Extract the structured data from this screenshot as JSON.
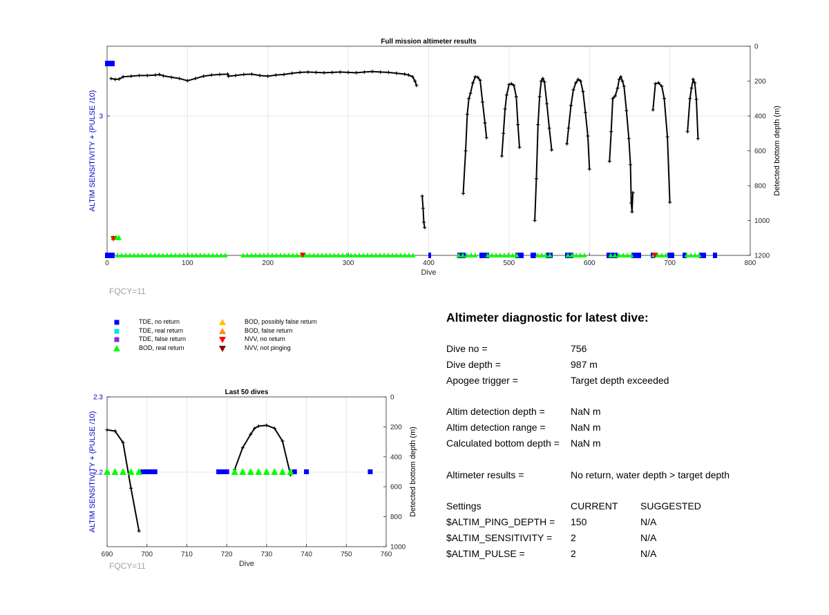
{
  "chart_data": [
    {
      "type": "scatter",
      "title": "Full mission altimeter results",
      "xlabel": "Dive",
      "ylabel_left": "ALTIM SENSITIVITY + (PULSE /10)",
      "ylabel_right": "Detected bottom depth (m)",
      "xlim": [
        0,
        800
      ],
      "x_ticks": [
        "0",
        "100",
        "200",
        "300",
        "400",
        "500",
        "600",
        "700",
        "800"
      ],
      "x_tick_values": [
        0,
        100,
        200,
        300,
        400,
        500,
        600,
        700,
        800
      ],
      "left_y_ticks": [
        "3"
      ],
      "right_ylim": [
        0,
        1200
      ],
      "right_y_ticks": [
        "0",
        "200",
        "400",
        "600",
        "800",
        "1000",
        "1200"
      ],
      "right_y_tick_values": [
        0,
        200,
        400,
        600,
        800,
        1000,
        1200
      ],
      "grid": true,
      "depth_segments": [
        [
          [
            5,
            185
          ],
          [
            10,
            190
          ],
          [
            15,
            188
          ],
          [
            20,
            175
          ],
          [
            30,
            172
          ],
          [
            40,
            168
          ],
          [
            50,
            168
          ],
          [
            60,
            165
          ],
          [
            65,
            162
          ],
          [
            70,
            170
          ],
          [
            80,
            178
          ],
          [
            90,
            185
          ],
          [
            100,
            198
          ],
          [
            110,
            185
          ],
          [
            120,
            172
          ],
          [
            130,
            165
          ],
          [
            140,
            162
          ],
          [
            150,
            160
          ],
          [
            151,
            172
          ],
          [
            160,
            168
          ],
          [
            170,
            162
          ],
          [
            180,
            160
          ],
          [
            190,
            168
          ],
          [
            200,
            172
          ],
          [
            210,
            165
          ],
          [
            220,
            162
          ],
          [
            230,
            155
          ],
          [
            240,
            150
          ],
          [
            250,
            148
          ],
          [
            260,
            150
          ],
          [
            270,
            152
          ],
          [
            280,
            150
          ],
          [
            290,
            148
          ],
          [
            300,
            150
          ],
          [
            310,
            152
          ],
          [
            320,
            148
          ],
          [
            330,
            145
          ],
          [
            340,
            148
          ],
          [
            350,
            150
          ],
          [
            360,
            155
          ],
          [
            370,
            160
          ],
          [
            375,
            165
          ],
          [
            380,
            175
          ],
          [
            383,
            200
          ],
          [
            385,
            225
          ]
        ],
        [
          [
            392,
            860
          ],
          [
            393,
            930
          ],
          [
            394,
            1010
          ],
          [
            395,
            1040
          ]
        ],
        [
          [
            443,
            845
          ],
          [
            446,
            600
          ],
          [
            448,
            390
          ],
          [
            450,
            300
          ],
          [
            452,
            270
          ],
          [
            455,
            210
          ],
          [
            458,
            175
          ],
          [
            461,
            178
          ],
          [
            464,
            195
          ],
          [
            467,
            320
          ],
          [
            470,
            440
          ],
          [
            472,
            525
          ]
        ],
        [
          [
            491,
            630
          ],
          [
            493,
            500
          ],
          [
            495,
            360
          ],
          [
            497,
            280
          ],
          [
            500,
            220
          ],
          [
            503,
            215
          ],
          [
            506,
            225
          ],
          [
            509,
            290
          ],
          [
            511,
            450
          ],
          [
            513,
            580
          ]
        ],
        [
          [
            532,
            1000
          ],
          [
            534,
            760
          ],
          [
            536,
            450
          ],
          [
            538,
            290
          ],
          [
            540,
            200
          ],
          [
            542,
            185
          ],
          [
            544,
            205
          ],
          [
            547,
            330
          ],
          [
            550,
            470
          ],
          [
            553,
            595
          ]
        ],
        [
          [
            572,
            560
          ],
          [
            574,
            470
          ],
          [
            577,
            340
          ],
          [
            580,
            250
          ],
          [
            583,
            210
          ],
          [
            586,
            190
          ],
          [
            589,
            200
          ],
          [
            592,
            260
          ],
          [
            595,
            380
          ],
          [
            598,
            515
          ],
          [
            600,
            705
          ]
        ],
        [
          [
            625,
            660
          ],
          [
            627,
            490
          ],
          [
            629,
            300
          ],
          [
            632,
            285
          ],
          [
            635,
            240
          ],
          [
            637,
            190
          ],
          [
            639,
            175
          ],
          [
            641,
            200
          ],
          [
            643,
            230
          ],
          [
            646,
            370
          ],
          [
            649,
            530
          ],
          [
            651,
            680
          ],
          [
            652,
            900
          ],
          [
            653,
            950
          ],
          [
            654,
            840
          ]
        ],
        [
          [
            679,
            365
          ],
          [
            682,
            215
          ],
          [
            686,
            210
          ],
          [
            690,
            230
          ],
          [
            693,
            300
          ],
          [
            697,
            520
          ],
          [
            700,
            895
          ]
        ],
        [
          [
            722,
            490
          ],
          [
            725,
            300
          ],
          [
            727,
            240
          ],
          [
            729,
            190
          ],
          [
            731,
            210
          ],
          [
            733,
            305
          ],
          [
            735,
            530
          ]
        ]
      ],
      "extra_labels": [
        "FQCY=11"
      ]
    },
    {
      "type": "scatter",
      "title": "Last 50 dives",
      "xlabel": "Dive",
      "ylabel_left": "ALTIM SENSITIVITY + (PULSE /10)",
      "ylabel_right": "Detected bottom depth (m)",
      "xlim": [
        690,
        760
      ],
      "x_ticks": [
        "690",
        "700",
        "710",
        "720",
        "730",
        "740",
        "750",
        "760"
      ],
      "x_tick_values": [
        690,
        700,
        710,
        720,
        730,
        740,
        750,
        760
      ],
      "ylim_left": [
        2.1,
        2.3
      ],
      "left_y_ticks": [
        "2.3",
        "2.2"
      ],
      "left_y_tick_values": [
        2.3,
        2.2
      ],
      "right_ylim": [
        0,
        1000
      ],
      "right_y_ticks": [
        "0",
        "200",
        "400",
        "600",
        "800",
        "1000"
      ],
      "right_y_tick_values": [
        0,
        200,
        400,
        600,
        800,
        1000
      ],
      "grid": true,
      "depth_segments": [
        [
          [
            690,
            220
          ],
          [
            692,
            228
          ],
          [
            694,
            305
          ],
          [
            696,
            610
          ],
          [
            698,
            895
          ]
        ],
        [
          [
            722,
            485
          ],
          [
            724,
            340
          ],
          [
            726,
            250
          ],
          [
            727,
            210
          ],
          [
            728,
            195
          ],
          [
            730,
            190
          ],
          [
            732,
            210
          ],
          [
            734,
            295
          ],
          [
            736,
            520
          ]
        ]
      ],
      "tde_no_return_dives": [
        699,
        700,
        701,
        702,
        718,
        719,
        720,
        737,
        740,
        756
      ],
      "bod_real_return_dives": [
        690,
        692,
        694,
        696,
        698,
        722,
        724,
        726,
        728,
        730,
        732,
        734,
        736
      ],
      "extra_labels": [
        "FQCY=11"
      ]
    }
  ],
  "legend": [
    {
      "label": "TDE, no return",
      "color": "#0000ff",
      "marker": "square"
    },
    {
      "label": "TDE, real return",
      "color": "#00e5ee",
      "marker": "square"
    },
    {
      "label": "TDE, false return",
      "color": "#8a2be2",
      "marker": "square"
    },
    {
      "label": "BOD, real return",
      "color": "#00ff00",
      "marker": "triangle-up"
    },
    {
      "label": "BOD, possibly false return",
      "color": "#ffc000",
      "marker": "triangle-up"
    },
    {
      "label": "BOD, false return",
      "color": "#ff8c1a",
      "marker": "triangle-up"
    },
    {
      "label": "NVV, no return",
      "color": "#ff0000",
      "marker": "triangle-down"
    },
    {
      "label": "NVV, not pinging",
      "color": "#8b0000",
      "marker": "triangle-down"
    }
  ],
  "diagnostic": {
    "title": "Altimeter diagnostic for latest dive:",
    "rows": [
      {
        "label": "Dive no =",
        "value": "756"
      },
      {
        "label": "Dive depth =",
        "value": "987 m"
      },
      {
        "label": "Apogee trigger =",
        "value": "Target depth exceeded"
      },
      {
        "label": "Altim detection depth =",
        "value": "NaN m"
      },
      {
        "label": "Altim detection range =",
        "value": "NaN m"
      },
      {
        "label": "Calculated bottom depth =",
        "value": "NaN m"
      },
      {
        "label": "Altimeter results =",
        "value": "No return, water depth > target depth"
      }
    ],
    "settings_header": {
      "label": "Settings",
      "current": "CURRENT",
      "suggested": "SUGGESTED"
    },
    "settings": [
      {
        "label": "$ALTIM_PING_DEPTH =",
        "current": "150",
        "suggested": "N/A"
      },
      {
        "label": "$ALTIM_SENSITIVITY =",
        "current": "2",
        "suggested": "N/A"
      },
      {
        "label": "$ALTIM_PULSE =",
        "current": "2",
        "suggested": "N/A"
      }
    ]
  },
  "colors": {
    "axis_left": "#0000cc",
    "grid": "#e6e6e6",
    "depth_line": "#000000",
    "tde_no_return": "#0000ff",
    "bod_real_return": "#00ff00",
    "nvv_no_return": "#ff0000",
    "fqcy": "#a0a0a0"
  }
}
